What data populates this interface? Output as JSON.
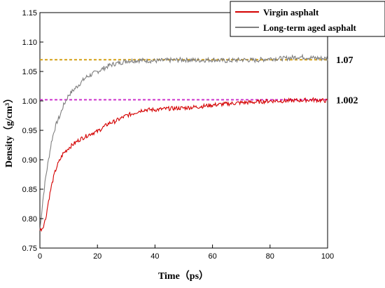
{
  "chart_data": {
    "type": "line",
    "xlabel": "Time（ps）",
    "ylabel": "Density（g/cm³）",
    "xlim": [
      0,
      100
    ],
    "ylim": [
      0.75,
      1.15
    ],
    "x_ticks": [
      "0",
      "20",
      "40",
      "60",
      "80",
      "100"
    ],
    "y_ticks": [
      "0.75",
      "0.80",
      "0.85",
      "0.90",
      "0.95",
      "1.00",
      "1.05",
      "1.10",
      "1.15"
    ],
    "grid": false,
    "legend_position": "top-right",
    "series": [
      {
        "name": "Virgin asphalt",
        "color": "#d40000",
        "x": [
          0,
          1,
          2,
          3,
          4,
          5,
          6,
          7,
          8,
          10,
          12,
          14,
          16,
          18,
          20,
          22,
          24,
          26,
          28,
          30,
          32,
          34,
          36,
          38,
          40,
          45,
          50,
          55,
          60,
          65,
          70,
          75,
          80,
          85,
          90,
          95,
          100
        ],
        "values": [
          0.78,
          0.785,
          0.8,
          0.83,
          0.855,
          0.875,
          0.89,
          0.9,
          0.91,
          0.92,
          0.928,
          0.935,
          0.94,
          0.945,
          0.948,
          0.955,
          0.962,
          0.965,
          0.97,
          0.975,
          0.978,
          0.982,
          0.985,
          0.985,
          0.985,
          0.987,
          0.988,
          0.99,
          0.993,
          0.995,
          0.997,
          0.998,
          1.0,
          1.0,
          1.001,
          1.002,
          1.0
        ]
      },
      {
        "name": "Long-term aged asphalt",
        "color": "#7f7f7f",
        "x": [
          0,
          1,
          2,
          3,
          4,
          5,
          6,
          7,
          8,
          9,
          10,
          12,
          14,
          16,
          18,
          20,
          22,
          24,
          26,
          28,
          30,
          35,
          40,
          45,
          50,
          55,
          60,
          65,
          70,
          75,
          80,
          85,
          90,
          95,
          100
        ],
        "values": [
          0.78,
          0.83,
          0.87,
          0.9,
          0.93,
          0.95,
          0.965,
          0.975,
          0.99,
          1.0,
          1.01,
          1.02,
          1.03,
          1.04,
          1.045,
          1.05,
          1.055,
          1.06,
          1.063,
          1.065,
          1.068,
          1.069,
          1.068,
          1.069,
          1.07,
          1.069,
          1.07,
          1.068,
          1.07,
          1.069,
          1.072,
          1.072,
          1.075,
          1.073,
          1.072
        ]
      }
    ],
    "reference_lines": [
      {
        "y": 1.07,
        "label": "1.07",
        "color": "#d4a017"
      },
      {
        "y": 1.002,
        "label": "1.002",
        "color": "#cc33cc"
      }
    ]
  }
}
